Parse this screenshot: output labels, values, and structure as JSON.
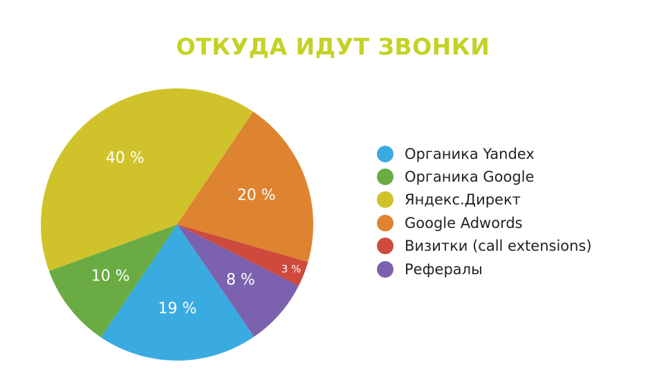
{
  "page": {
    "background": "#ffffff"
  },
  "title": {
    "text": "ОТКУДА ИДУТ ЗВОНКИ",
    "color": "#c4d225"
  },
  "chart_data": {
    "type": "pie",
    "title": "ОТКУДА ИДУТ ЗВОНКИ",
    "slices": [
      {
        "name": "Яндекс.Директ",
        "value": 40,
        "label": "40 %",
        "color": "#d0c22b"
      },
      {
        "name": "Google Adwords",
        "value": 20,
        "label": "20 %",
        "color": "#de832f"
      },
      {
        "name": "Визитки (call extensions)",
        "value": 3,
        "label": "3 %",
        "color": "#cd4a3d"
      },
      {
        "name": "Рефералы",
        "value": 8,
        "label": "8 %",
        "color": "#7c62ae"
      },
      {
        "name": "Органика Yandex",
        "value": 19,
        "label": "19 %",
        "color": "#3aabe0"
      },
      {
        "name": "Органика Google",
        "value": 10,
        "label": "10 %",
        "color": "#6aac43"
      }
    ],
    "legend": {
      "position": "right",
      "items": [
        {
          "label": "Органика Yandex",
          "color": "#3aabe0"
        },
        {
          "label": "Органика Google",
          "color": "#6aac43"
        },
        {
          "label": "Яндекс.Директ",
          "color": "#d0c22b"
        },
        {
          "label": "Google Adwords",
          "color": "#de832f"
        },
        {
          "label": "Визитки (call extensions)",
          "color": "#cd4a3d"
        },
        {
          "label": "Рефералы",
          "color": "#7c62ae"
        }
      ]
    }
  }
}
